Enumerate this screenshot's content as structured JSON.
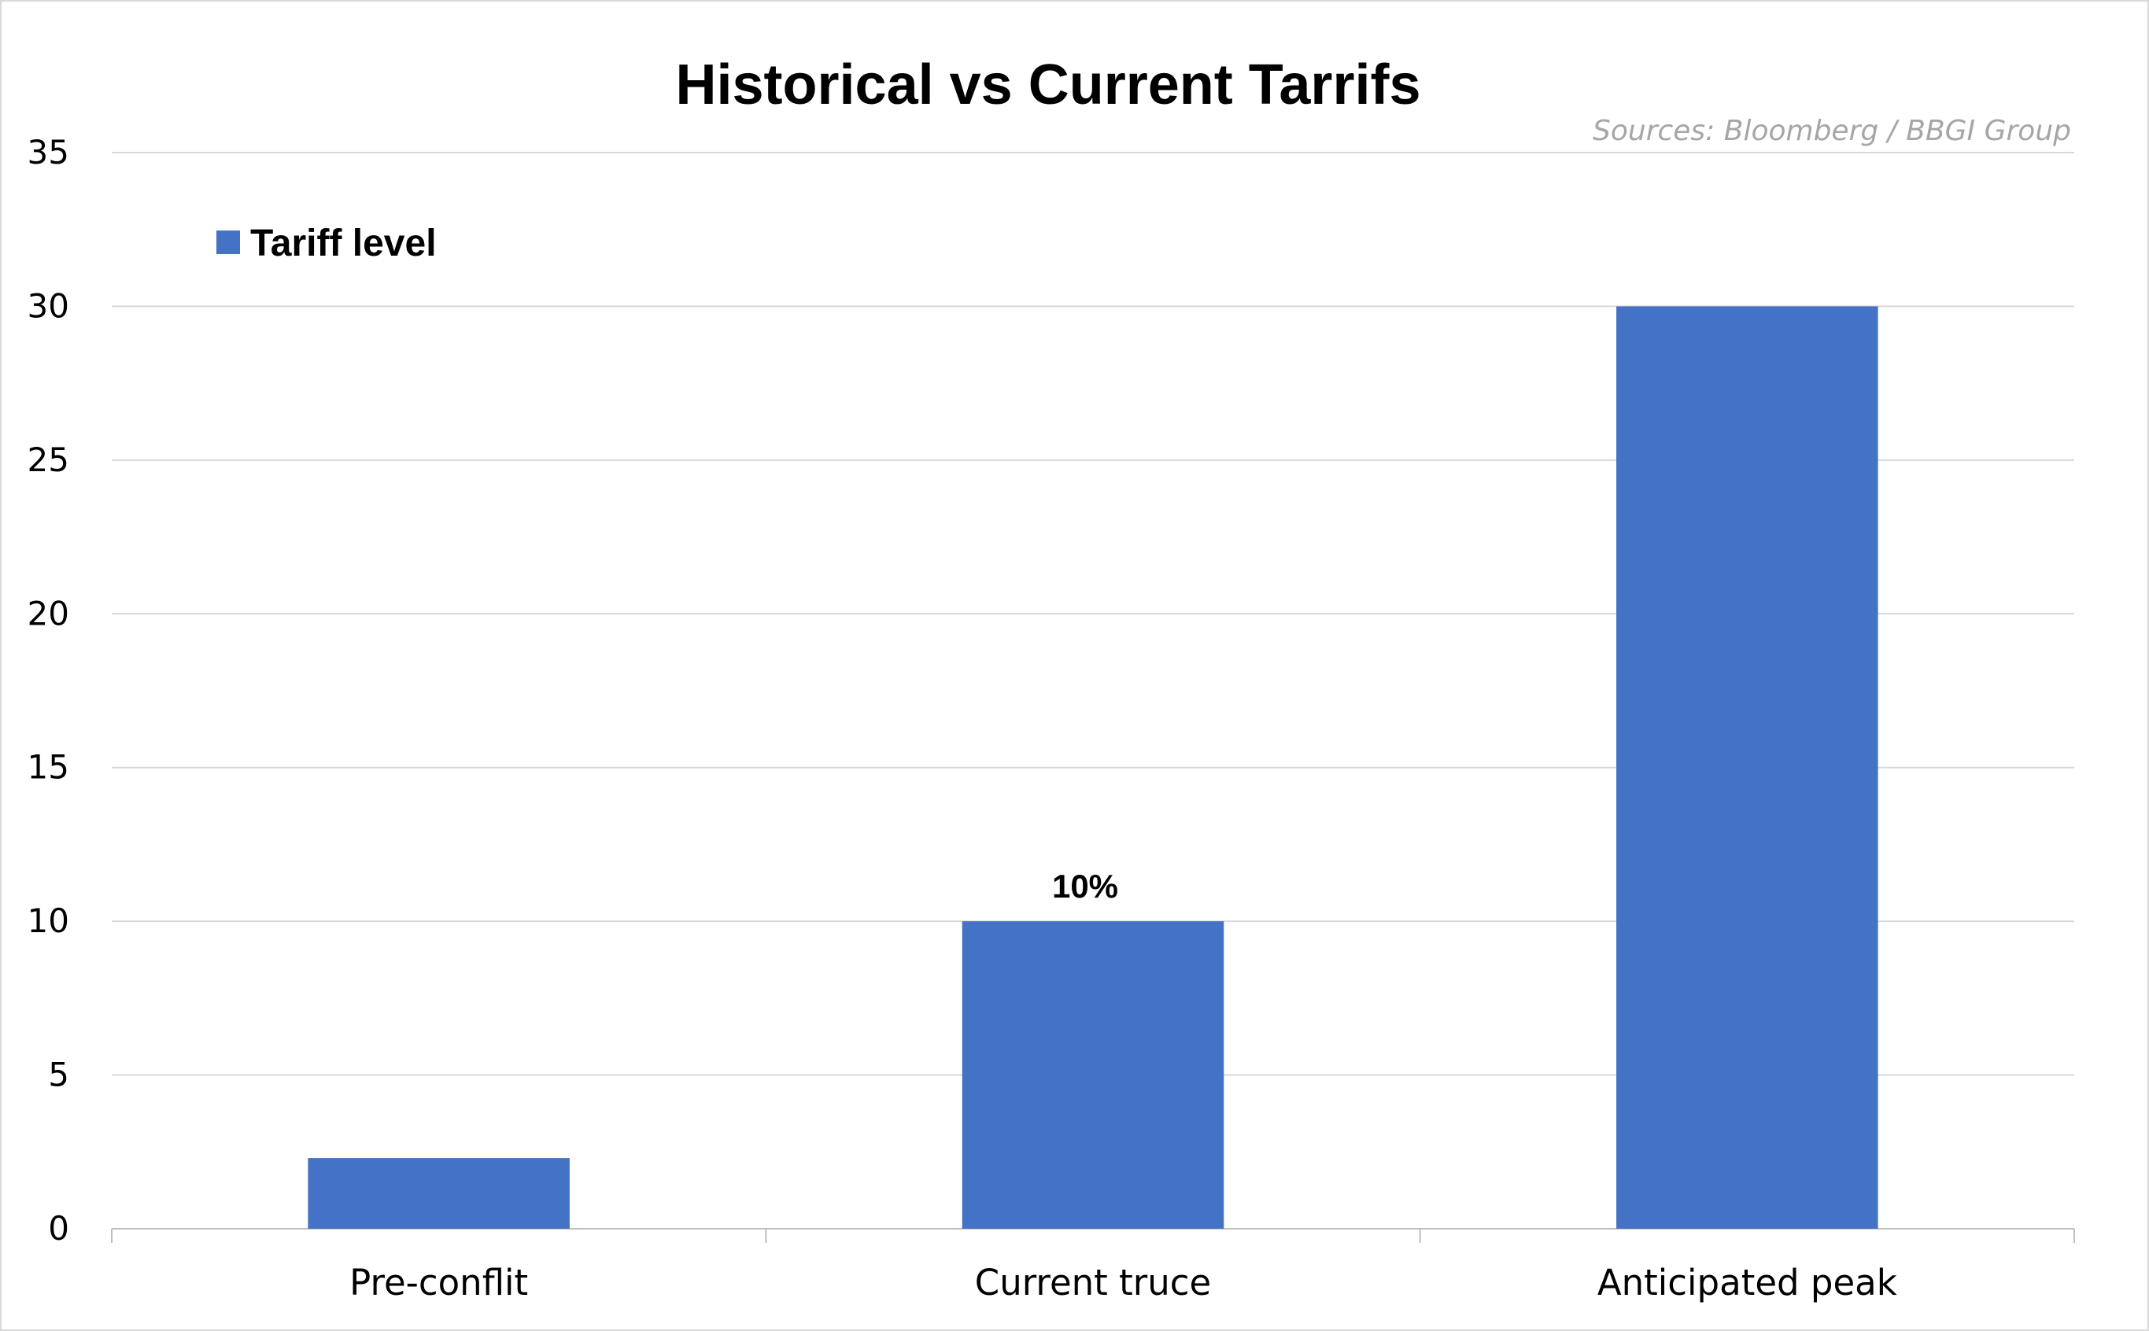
{
  "chart_data": {
    "type": "bar",
    "title": "Historical vs Current Tarrifs",
    "source": "Sources: Bloomberg / BBGI Group",
    "categories": [
      "Pre-conflit",
      "Current truce",
      "Anticipated peak"
    ],
    "series": [
      {
        "name": "Tariff level",
        "values": [
          2.3,
          10,
          30
        ],
        "color": "#4472c4"
      }
    ],
    "data_labels": [
      "",
      "10%",
      ""
    ],
    "yticks": [
      0,
      5,
      10,
      15,
      20,
      25,
      30,
      35
    ],
    "ylim": [
      0,
      35
    ],
    "grid": true,
    "legend_position": "top-left"
  }
}
